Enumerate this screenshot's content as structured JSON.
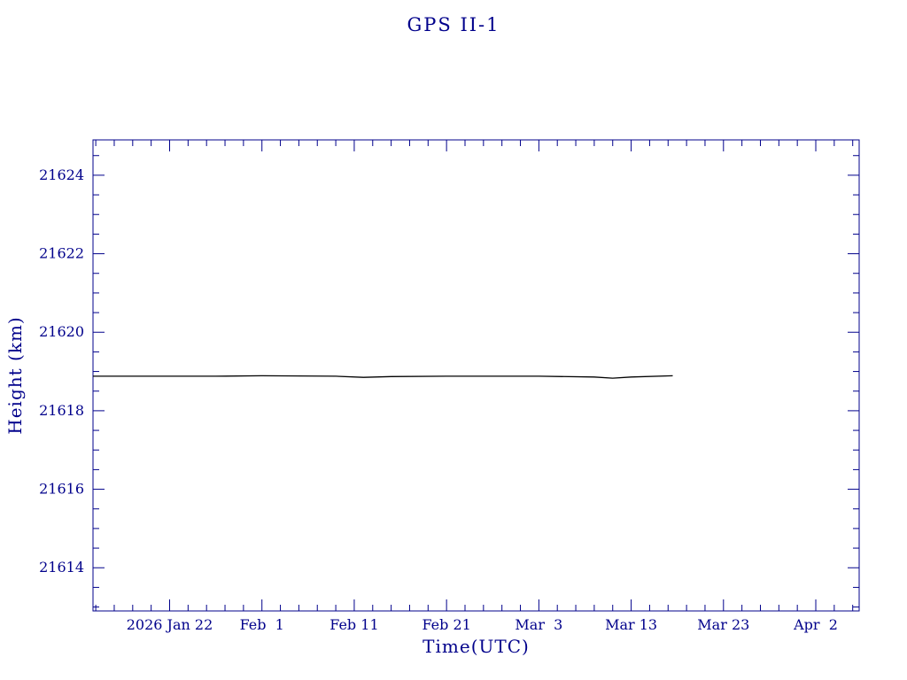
{
  "page": {
    "background": "#ffffff"
  },
  "chart_data": {
    "type": "line",
    "title": "GPS II-1",
    "xlabel": "Time(UTC)",
    "ylabel": "Height (km)",
    "axis_color": "#00008B",
    "grid": false,
    "legend": "none",
    "x_axis": {
      "tick_labels": [
        "2026 Jan 22",
        "Feb  1",
        "Feb 11",
        "Feb 21",
        "Mar  3",
        "Mar 13",
        "Mar 23",
        "Apr  2"
      ],
      "tick_days": [
        0,
        10,
        20,
        30,
        40,
        50,
        60,
        70
      ],
      "minor_step_days": 2,
      "xlim_days": [
        -8.3,
        74.7
      ]
    },
    "y_axis": {
      "ticks": [
        21614,
        21616,
        21618,
        21620,
        21622,
        21624
      ],
      "minor_step": 0.5,
      "ylim": [
        21612.9,
        21624.9
      ]
    },
    "series": [
      {
        "name": "GPS II-1 height",
        "color": "#000000",
        "points": [
          [
            -8.3,
            21618.88
          ],
          [
            5,
            21618.88
          ],
          [
            10,
            21618.89
          ],
          [
            18,
            21618.88
          ],
          [
            21,
            21618.85
          ],
          [
            24,
            21618.87
          ],
          [
            30,
            21618.88
          ],
          [
            40,
            21618.88
          ],
          [
            46,
            21618.86
          ],
          [
            48,
            21618.83
          ],
          [
            50,
            21618.86
          ],
          [
            54.5,
            21618.89
          ]
        ]
      }
    ]
  }
}
